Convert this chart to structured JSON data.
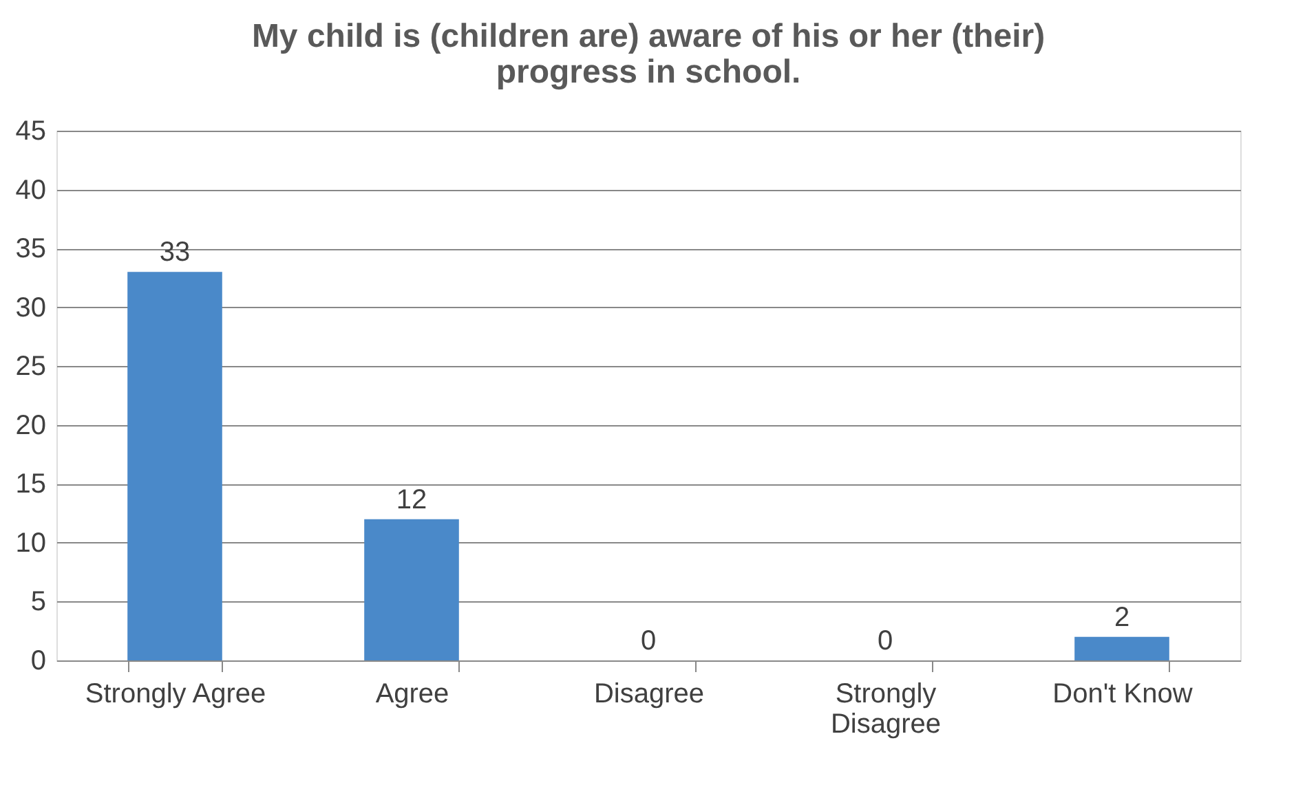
{
  "chart_data": {
    "type": "bar",
    "title": "My child is (children are) aware of his or her (their) progress in school.",
    "categories": [
      "Strongly Agree",
      "Agree",
      "Disagree",
      "Strongly Disagree",
      "Don't Know"
    ],
    "values": [
      33,
      12,
      0,
      0,
      2
    ],
    "color": "#4a89c9",
    "ylim": [
      0,
      45
    ],
    "yticks": [
      0,
      5,
      10,
      15,
      20,
      25,
      30,
      35,
      40,
      45
    ],
    "grid": "y",
    "data_labels": true
  }
}
